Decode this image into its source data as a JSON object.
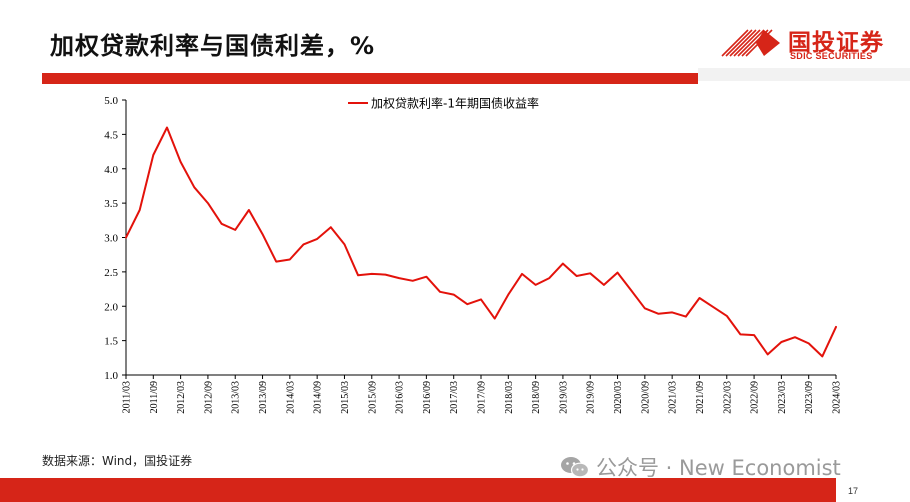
{
  "header": {
    "title": "加权贷款利率与国债利差，%",
    "logo_cn": "国投证券",
    "logo_en": "SDIC SECURITIES"
  },
  "footer": {
    "source": "数据来源：Wind，国投证券",
    "watermark": "公众号 · New Economist",
    "page_number": "17"
  },
  "colors": {
    "brand_red": "#d62518",
    "series_line": "#e3120b"
  },
  "icons": [
    "logo-stripes-icon",
    "wechat-icon"
  ],
  "chart_data": {
    "type": "line",
    "title": "",
    "xlabel": "",
    "ylabel": "",
    "ylim": [
      1.0,
      5.0
    ],
    "yticks": [
      "1.0",
      "1.5",
      "2.0",
      "2.5",
      "3.0",
      "3.5",
      "4.0",
      "4.5",
      "5.0"
    ],
    "grid": false,
    "legend_position": "top-center",
    "xticks": [
      "2011/03",
      "2011/09",
      "2012/03",
      "2012/09",
      "2013/03",
      "2013/09",
      "2014/03",
      "2014/09",
      "2015/03",
      "2015/09",
      "2016/03",
      "2016/09",
      "2017/03",
      "2017/09",
      "2018/03",
      "2018/09",
      "2019/03",
      "2019/09",
      "2020/03",
      "2020/09",
      "2021/03",
      "2021/09",
      "2022/03",
      "2022/09",
      "2023/03",
      "2023/09",
      "2024/03"
    ],
    "series": [
      {
        "name": "加权贷款利率-1年期国债收益率",
        "values": [
          3.0,
          3.4,
          4.2,
          4.6,
          4.1,
          3.73,
          3.5,
          3.2,
          3.11,
          3.4,
          3.05,
          2.65,
          2.68,
          2.9,
          2.98,
          3.15,
          2.9,
          2.45,
          2.47,
          2.46,
          2.41,
          2.37,
          2.43,
          2.21,
          2.17,
          2.03,
          2.1,
          1.82,
          2.17,
          2.47,
          2.31,
          2.41,
          2.62,
          2.44,
          2.48,
          2.31,
          2.49,
          2.23,
          1.97,
          1.89,
          1.91,
          1.85,
          2.12,
          1.99,
          1.86,
          1.59,
          1.58,
          1.3,
          1.48,
          1.55,
          1.46,
          1.27,
          1.7
        ]
      }
    ]
  }
}
